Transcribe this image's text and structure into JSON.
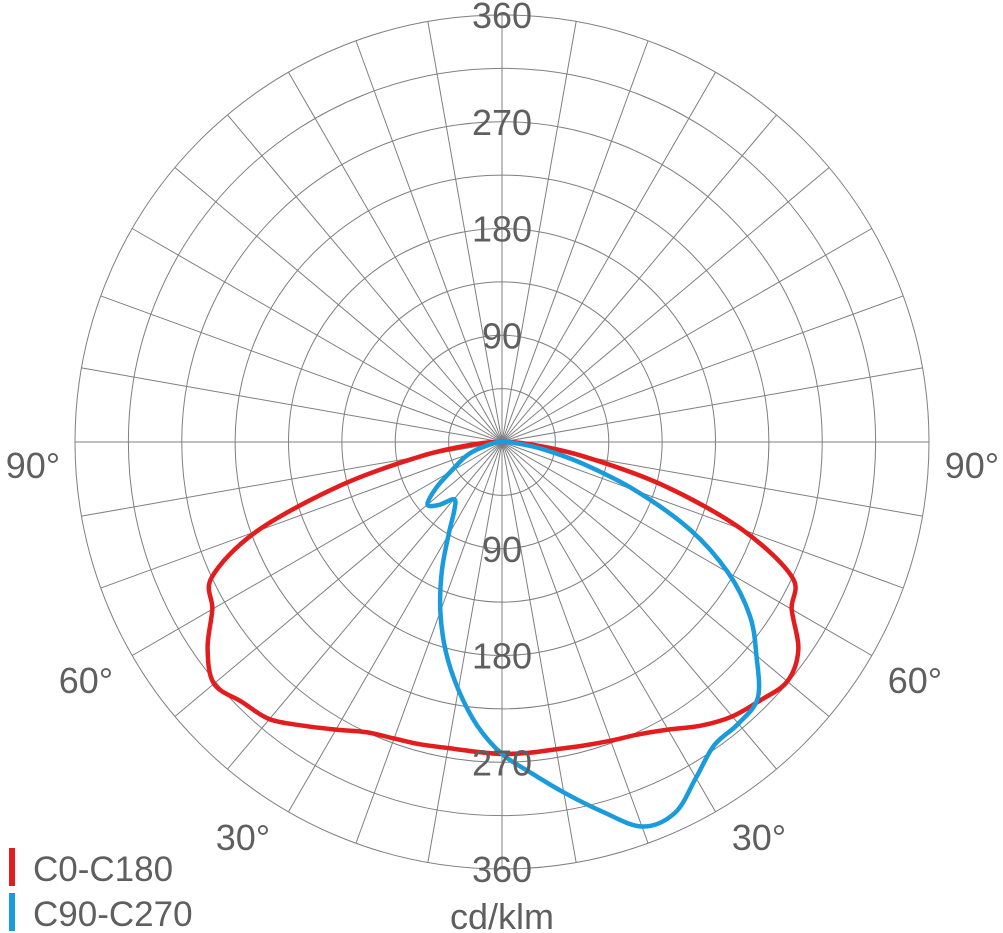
{
  "chart_data": {
    "type": "polar",
    "unit_label": "cd/klm",
    "radial_max": 360,
    "radial_ticks": [
      "90",
      "180",
      "270",
      "360"
    ],
    "angle_labels": [
      "90°",
      "60°",
      "30°",
      "90°",
      "60°",
      "30°"
    ],
    "grid": true,
    "legend_position": "bottom-left",
    "series": [
      {
        "name": "C0-C180",
        "color": "#e31d1d",
        "points": [
          {
            "side": "left",
            "gamma": 0,
            "value": 263
          },
          {
            "side": "left",
            "gamma": 5,
            "value": 262
          },
          {
            "side": "left",
            "gamma": 10,
            "value": 262
          },
          {
            "side": "left",
            "gamma": 15,
            "value": 264
          },
          {
            "side": "left",
            "gamma": 20,
            "value": 266
          },
          {
            "side": "left",
            "gamma": 25,
            "value": 270
          },
          {
            "side": "left",
            "gamma": 30,
            "value": 280
          },
          {
            "side": "left",
            "gamma": 35,
            "value": 292
          },
          {
            "side": "left",
            "gamma": 40,
            "value": 305
          },
          {
            "side": "left",
            "gamma": 45,
            "value": 310
          },
          {
            "side": "left",
            "gamma": 50,
            "value": 317
          },
          {
            "side": "left",
            "gamma": 55,
            "value": 303
          },
          {
            "side": "left",
            "gamma": 60,
            "value": 282
          },
          {
            "side": "left",
            "gamma": 65,
            "value": 270
          },
          {
            "side": "left",
            "gamma": 70,
            "value": 220
          },
          {
            "side": "left",
            "gamma": 75,
            "value": 140
          },
          {
            "side": "left",
            "gamma": 80,
            "value": 70
          },
          {
            "side": "left",
            "gamma": 85,
            "value": 25
          },
          {
            "side": "left",
            "gamma": 90,
            "value": 0
          },
          {
            "side": "right",
            "gamma": 90,
            "value": 0
          },
          {
            "side": "right",
            "gamma": 85,
            "value": 25
          },
          {
            "side": "right",
            "gamma": 80,
            "value": 70
          },
          {
            "side": "right",
            "gamma": 75,
            "value": 140
          },
          {
            "side": "right",
            "gamma": 70,
            "value": 215
          },
          {
            "side": "right",
            "gamma": 65,
            "value": 270
          },
          {
            "side": "right",
            "gamma": 60,
            "value": 282
          },
          {
            "side": "right",
            "gamma": 55,
            "value": 305
          },
          {
            "side": "right",
            "gamma": 50,
            "value": 314
          },
          {
            "side": "right",
            "gamma": 45,
            "value": 308
          },
          {
            "side": "right",
            "gamma": 40,
            "value": 302
          },
          {
            "side": "right",
            "gamma": 35,
            "value": 292
          },
          {
            "side": "right",
            "gamma": 30,
            "value": 280
          },
          {
            "side": "right",
            "gamma": 25,
            "value": 272
          },
          {
            "side": "right",
            "gamma": 20,
            "value": 268
          },
          {
            "side": "right",
            "gamma": 15,
            "value": 265
          },
          {
            "side": "right",
            "gamma": 10,
            "value": 263
          },
          {
            "side": "right",
            "gamma": 5,
            "value": 263
          },
          {
            "side": "right",
            "gamma": 0,
            "value": 263
          }
        ]
      },
      {
        "name": "C90-C270",
        "color": "#1a9bdb",
        "points": [
          {
            "side": "right",
            "gamma": 0,
            "value": 263
          },
          {
            "side": "right",
            "gamma": 5,
            "value": 280
          },
          {
            "side": "right",
            "gamma": 10,
            "value": 300
          },
          {
            "side": "right",
            "gamma": 15,
            "value": 322
          },
          {
            "side": "right",
            "gamma": 20,
            "value": 345
          },
          {
            "side": "right",
            "gamma": 25,
            "value": 345
          },
          {
            "side": "right",
            "gamma": 30,
            "value": 327
          },
          {
            "side": "right",
            "gamma": 35,
            "value": 312
          },
          {
            "side": "right",
            "gamma": 40,
            "value": 310
          },
          {
            "side": "right",
            "gamma": 45,
            "value": 305
          },
          {
            "side": "right",
            "gamma": 50,
            "value": 280
          },
          {
            "side": "right",
            "gamma": 55,
            "value": 255
          },
          {
            "side": "right",
            "gamma": 60,
            "value": 220
          },
          {
            "side": "right",
            "gamma": 65,
            "value": 175
          },
          {
            "side": "right",
            "gamma": 70,
            "value": 120
          },
          {
            "side": "right",
            "gamma": 75,
            "value": 70
          },
          {
            "side": "right",
            "gamma": 80,
            "value": 35
          },
          {
            "side": "right",
            "gamma": 85,
            "value": 12
          },
          {
            "side": "right",
            "gamma": 90,
            "value": 0
          },
          {
            "side": "left",
            "gamma": 90,
            "value": 0
          },
          {
            "side": "left",
            "gamma": 80,
            "value": 10
          },
          {
            "side": "left",
            "gamma": 70,
            "value": 30
          },
          {
            "side": "left",
            "gamma": 60,
            "value": 50
          },
          {
            "side": "left",
            "gamma": 55,
            "value": 68
          },
          {
            "side": "left",
            "gamma": 50,
            "value": 82
          },
          {
            "side": "left",
            "gamma": 45,
            "value": 75
          },
          {
            "side": "left",
            "gamma": 40,
            "value": 63
          },
          {
            "side": "left",
            "gamma": 35,
            "value": 70
          },
          {
            "side": "left",
            "gamma": 30,
            "value": 90
          },
          {
            "side": "left",
            "gamma": 25,
            "value": 120
          },
          {
            "side": "left",
            "gamma": 20,
            "value": 152
          },
          {
            "side": "left",
            "gamma": 15,
            "value": 183
          },
          {
            "side": "left",
            "gamma": 10,
            "value": 212
          },
          {
            "side": "left",
            "gamma": 5,
            "value": 240
          },
          {
            "side": "left",
            "gamma": 0,
            "value": 263
          }
        ]
      }
    ]
  }
}
